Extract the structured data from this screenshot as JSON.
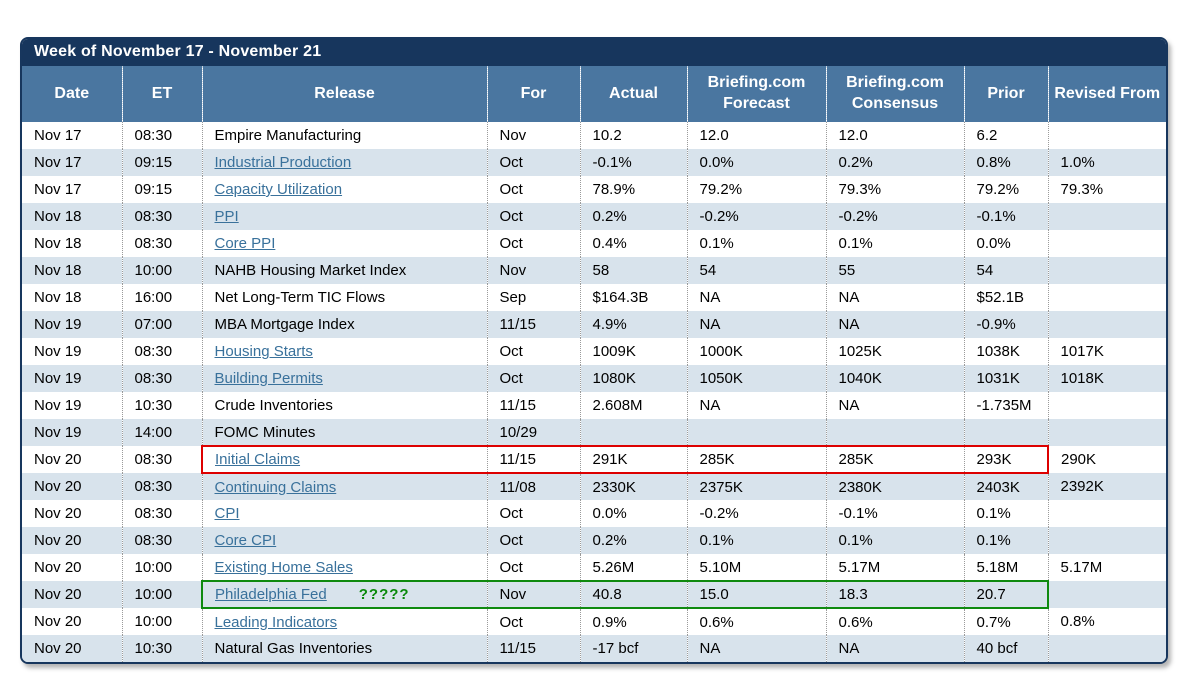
{
  "title": "Week of November 17 - November 21",
  "columns": [
    "Date",
    "ET",
    "Release",
    "For",
    "Actual",
    "Briefing.com Forecast",
    "Briefing.com Consensus",
    "Prior",
    "Revised From"
  ],
  "rows": [
    {
      "date": "Nov 17",
      "et": "08:30",
      "release": "Empire Manufacturing",
      "is_link": false,
      "for": "Nov",
      "actual": "10.2",
      "forecast": "12.0",
      "consensus": "12.0",
      "prior": "6.2",
      "revised": ""
    },
    {
      "date": "Nov 17",
      "et": "09:15",
      "release": "Industrial Production",
      "is_link": true,
      "for": "Oct",
      "actual": "-0.1%",
      "forecast": "0.0%",
      "consensus": "0.2%",
      "prior": "0.8%",
      "revised": "1.0%"
    },
    {
      "date": "Nov 17",
      "et": "09:15",
      "release": "Capacity Utilization",
      "is_link": true,
      "for": "Oct",
      "actual": "78.9%",
      "forecast": "79.2%",
      "consensus": "79.3%",
      "prior": "79.2%",
      "revised": "79.3%"
    },
    {
      "date": "Nov 18",
      "et": "08:30",
      "release": "PPI",
      "is_link": true,
      "for": "Oct",
      "actual": "0.2%",
      "forecast": "-0.2%",
      "consensus": "-0.2%",
      "prior": "-0.1%",
      "revised": ""
    },
    {
      "date": "Nov 18",
      "et": "08:30",
      "release": "Core PPI",
      "is_link": true,
      "for": "Oct",
      "actual": "0.4%",
      "forecast": "0.1%",
      "consensus": "0.1%",
      "prior": "0.0%",
      "revised": ""
    },
    {
      "date": "Nov 18",
      "et": "10:00",
      "release": "NAHB Housing Market Index",
      "is_link": false,
      "for": "Nov",
      "actual": "58",
      "forecast": "54",
      "consensus": "55",
      "prior": "54",
      "revised": ""
    },
    {
      "date": "Nov 18",
      "et": "16:00",
      "release": "Net Long-Term TIC Flows",
      "is_link": false,
      "for": "Sep",
      "actual": "$164.3B",
      "forecast": "NA",
      "consensus": "NA",
      "prior": "$52.1B",
      "revised": ""
    },
    {
      "date": "Nov 19",
      "et": "07:00",
      "release": "MBA Mortgage Index",
      "is_link": false,
      "for": "11/15",
      "actual": "4.9%",
      "forecast": "NA",
      "consensus": "NA",
      "prior": "-0.9%",
      "revised": ""
    },
    {
      "date": "Nov 19",
      "et": "08:30",
      "release": "Housing Starts",
      "is_link": true,
      "for": "Oct",
      "actual": "1009K",
      "forecast": "1000K",
      "consensus": "1025K",
      "prior": "1038K",
      "revised": "1017K"
    },
    {
      "date": "Nov 19",
      "et": "08:30",
      "release": "Building Permits",
      "is_link": true,
      "for": "Oct",
      "actual": "1080K",
      "forecast": "1050K",
      "consensus": "1040K",
      "prior": "1031K",
      "revised": "1018K"
    },
    {
      "date": "Nov 19",
      "et": "10:30",
      "release": "Crude Inventories",
      "is_link": false,
      "for": "11/15",
      "actual": "2.608M",
      "forecast": "NA",
      "consensus": "NA",
      "prior": "-1.735M",
      "revised": ""
    },
    {
      "date": "Nov 19",
      "et": "14:00",
      "release": "FOMC Minutes",
      "is_link": false,
      "for": "10/29",
      "actual": "",
      "forecast": "",
      "consensus": "",
      "prior": "",
      "revised": ""
    },
    {
      "date": "Nov 20",
      "et": "08:30",
      "release": "Initial Claims",
      "is_link": true,
      "for": "11/15",
      "actual": "291K",
      "forecast": "285K",
      "consensus": "285K",
      "prior": "293K",
      "revised": "290K",
      "highlight": "red"
    },
    {
      "date": "Nov 20",
      "et": "08:30",
      "release": "Continuing Claims",
      "is_link": true,
      "for": "11/08",
      "actual": "2330K",
      "forecast": "2375K",
      "consensus": "2380K",
      "prior": "2403K",
      "revised": "2392K"
    },
    {
      "date": "Nov 20",
      "et": "08:30",
      "release": "CPI",
      "is_link": true,
      "for": "Oct",
      "actual": "0.0%",
      "forecast": "-0.2%",
      "consensus": "-0.1%",
      "prior": "0.1%",
      "revised": ""
    },
    {
      "date": "Nov 20",
      "et": "08:30",
      "release": "Core CPI",
      "is_link": true,
      "for": "Oct",
      "actual": "0.2%",
      "forecast": "0.1%",
      "consensus": "0.1%",
      "prior": "0.1%",
      "revised": ""
    },
    {
      "date": "Nov 20",
      "et": "10:00",
      "release": "Existing Home Sales",
      "is_link": true,
      "for": "Oct",
      "actual": "5.26M",
      "forecast": "5.10M",
      "consensus": "5.17M",
      "prior": "5.18M",
      "revised": "5.17M"
    },
    {
      "date": "Nov 20",
      "et": "10:00",
      "release": "Philadelphia Fed",
      "is_link": true,
      "annotation": "?????",
      "for": "Nov",
      "actual": "40.8",
      "forecast": "15.0",
      "consensus": "18.3",
      "prior": "20.7",
      "revised": "",
      "highlight": "green"
    },
    {
      "date": "Nov 20",
      "et": "10:00",
      "release": "Leading Indicators",
      "is_link": true,
      "for": "Oct",
      "actual": "0.9%",
      "forecast": "0.6%",
      "consensus": "0.6%",
      "prior": "0.7%",
      "revised": "0.8%"
    },
    {
      "date": "Nov 20",
      "et": "10:30",
      "release": "Natural Gas Inventories",
      "is_link": false,
      "for": "11/15",
      "actual": "-17 bcf",
      "forecast": "NA",
      "consensus": "NA",
      "prior": "40 bcf",
      "revised": ""
    }
  ],
  "colors": {
    "title_bar_bg": "#17365d",
    "header_bg": "#4a76a0",
    "row_alt_bg": "#d8e3ec",
    "link_color": "#39719b",
    "red_highlight": "#dd0000",
    "green_highlight": "#0f8a0f",
    "annotation_green": "#0a8a0a"
  }
}
